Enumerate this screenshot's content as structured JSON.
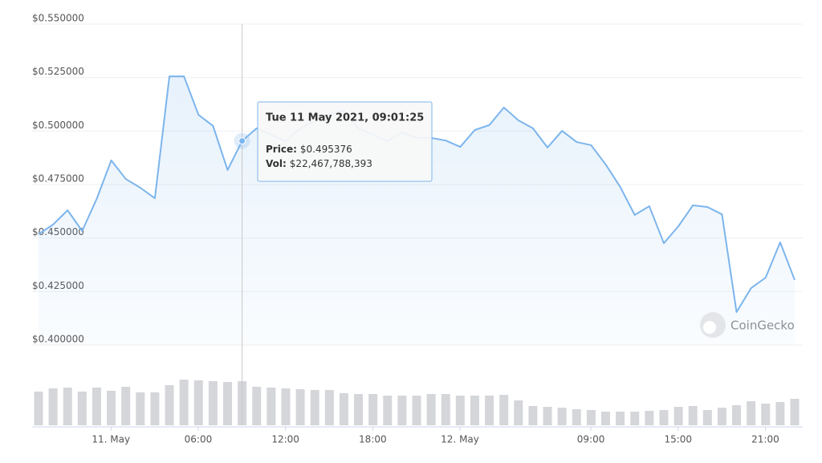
{
  "chart_data": {
    "type": "line",
    "x": [
      "2021-05-10T19:01",
      "2021-05-10T20:01",
      "2021-05-10T21:01",
      "2021-05-10T22:01",
      "2021-05-10T23:01",
      "2021-05-11T00:01",
      "2021-05-11T01:01",
      "2021-05-11T02:01",
      "2021-05-11T03:01",
      "2021-05-11T04:01",
      "2021-05-11T05:01",
      "2021-05-11T06:01",
      "2021-05-11T07:01",
      "2021-05-11T08:01",
      "2021-05-11T09:01",
      "2021-05-11T10:01",
      "2021-05-11T11:01",
      "2021-05-11T12:01",
      "2021-05-11T13:01",
      "2021-05-11T14:01",
      "2021-05-11T15:01",
      "2021-05-11T16:01",
      "2021-05-11T17:01",
      "2021-05-11T18:01",
      "2021-05-11T19:01",
      "2021-05-11T20:01",
      "2021-05-11T21:01",
      "2021-05-11T22:01",
      "2021-05-11T23:01",
      "2021-05-12T00:01",
      "2021-05-12T01:01",
      "2021-05-12T02:01",
      "2021-05-12T03:01",
      "2021-05-12T04:01",
      "2021-05-12T05:01",
      "2021-05-12T06:01",
      "2021-05-12T07:01",
      "2021-05-12T08:01",
      "2021-05-12T09:01",
      "2021-05-12T10:01",
      "2021-05-12T11:01",
      "2021-05-12T12:01",
      "2021-05-12T13:01",
      "2021-05-12T14:01",
      "2021-05-12T15:01",
      "2021-05-12T16:01",
      "2021-05-12T17:01",
      "2021-05-12T18:01",
      "2021-05-12T19:01",
      "2021-05-12T20:01",
      "2021-05-12T21:01",
      "2021-05-12T22:01",
      "2021-05-12T23:01"
    ],
    "series": [
      {
        "color": "#7cb5ec",
        "values": [
          0.4518,
          0.4563,
          0.463,
          0.4533,
          0.4683,
          0.4863,
          0.4776,
          0.4735,
          0.4686,
          0.5256,
          0.5256,
          0.5076,
          0.5024,
          0.4818,
          0.495376,
          0.5013,
          0.4983,
          0.4953,
          0.5013,
          0.505,
          0.508,
          0.5095,
          0.5013,
          0.4983,
          0.4953,
          0.4994,
          0.4968,
          0.4968,
          0.4956,
          0.4926,
          0.5005,
          0.5028,
          0.511,
          0.505,
          0.5013,
          0.4923,
          0.5001,
          0.4949,
          0.4934,
          0.4844,
          0.4739,
          0.4608,
          0.4649,
          0.4476,
          0.4555,
          0.4653,
          0.4645,
          0.4611,
          0.4154,
          0.4266,
          0.4315,
          0.448,
          0.4304
        ]
      },
      {
        "type": "bar",
        "axis": "y2",
        "color": "#d4d6d9",
        "values": [
          17160000000,
          18790000000,
          19200000000,
          17160000000,
          19200000000,
          17570000000,
          19610000000,
          16750000000,
          16750000000,
          20430000000,
          23280000000,
          22880000000,
          22470000000,
          22060000000,
          22467788393,
          19610000000,
          19200000000,
          18790000000,
          18380000000,
          17970000000,
          17970000000,
          16340000000,
          15930000000,
          15930000000,
          15110000000,
          15110000000,
          15110000000,
          15930000000,
          15930000000,
          15110000000,
          15110000000,
          15110000000,
          15520000000,
          12660000000,
          9800000000,
          9400000000,
          8990000000,
          8170000000,
          7760000000,
          6940000000,
          6940000000,
          6940000000,
          7350000000,
          7760000000,
          9400000000,
          9800000000,
          7760000000,
          8990000000,
          10210000000,
          12260000000,
          11030000000,
          11850000000,
          13480000000
        ]
      }
    ],
    "ylim": [
      0.4,
      0.55
    ],
    "yticks": [
      {
        "value": 0.4,
        "label": "$0.400000"
      },
      {
        "value": 0.425,
        "label": "$0.425000"
      },
      {
        "value": 0.45,
        "label": "$0.450000"
      },
      {
        "value": 0.475,
        "label": "$0.475000"
      },
      {
        "value": 0.5,
        "label": "$0.500000"
      },
      {
        "value": 0.525,
        "label": "$0.525000"
      },
      {
        "value": 0.55,
        "label": "$0.550000"
      }
    ],
    "y2lim": [
      0,
      30000000000
    ],
    "xlim": [
      "2021-05-10T19:01",
      "2021-05-12T23:01"
    ],
    "xticks": [
      {
        "value": "2021-05-11T00:00",
        "label": "11. May"
      },
      {
        "value": "2021-05-11T06:00",
        "label": "06:00"
      },
      {
        "value": "2021-05-11T12:00",
        "label": "12:00"
      },
      {
        "value": "2021-05-11T18:00",
        "label": "18:00"
      },
      {
        "value": "2021-05-12T00:00",
        "label": "12. May"
      },
      {
        "value": "2021-05-12T09:00",
        "label": "09:00"
      },
      {
        "value": "2021-05-12T15:00",
        "label": "15:00"
      },
      {
        "value": "2021-05-12T21:00",
        "label": "21:00"
      }
    ],
    "grid": true,
    "watermark": "CoinGecko",
    "tooltip": {
      "index": 14,
      "title": "Tue 11 May 2021, 09:01:25",
      "price_label": "Price:",
      "price": "$0.495376",
      "vol_label": "Vol:",
      "vol": "$22,467,788,393"
    }
  }
}
